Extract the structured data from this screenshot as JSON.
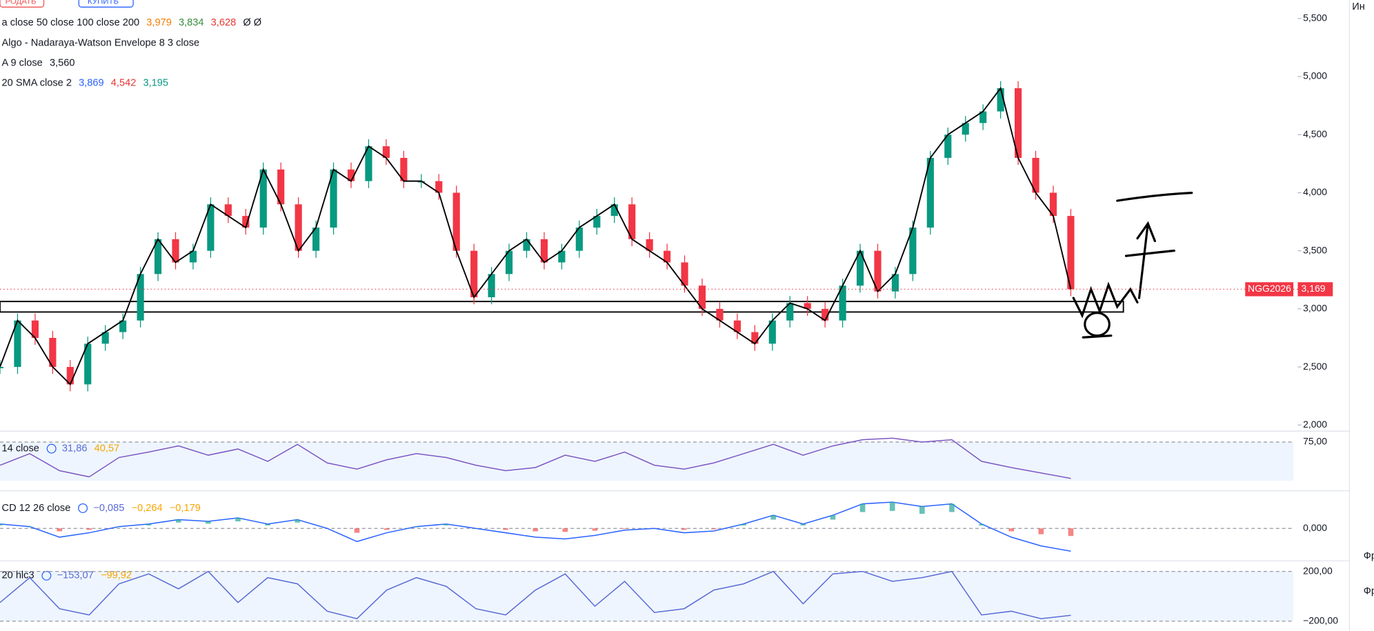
{
  "buttons": {
    "sell": "РОДАТЬ",
    "buy": "КУПИТЬ"
  },
  "legend": [
    {
      "name": "a close 50 close 100 close 200",
      "values": [
        "3,979",
        "3,834",
        "3,628",
        "Ø Ø"
      ],
      "colors": [
        "#f57c00",
        "#388e3c",
        "#e53935",
        "#131722"
      ]
    },
    {
      "name": "Algo - Nadaraya-Watson Envelope 8 3 close",
      "values": [],
      "colors": []
    },
    {
      "name": "A 9 close",
      "values": [
        "3,560"
      ],
      "colors": [
        "#131722"
      ]
    },
    {
      "name": "20 SMA close 2",
      "values": [
        "3,869",
        "4,542",
        "3,195"
      ],
      "colors": [
        "#2962ff",
        "#e53935",
        "#089981"
      ]
    }
  ],
  "main": {
    "ylim": [
      2000,
      5500
    ],
    "yticks": [
      {
        "value": 2000,
        "label": "2,000"
      },
      {
        "value": 2500,
        "label": "2,500"
      },
      {
        "value": 3000,
        "label": "3,000"
      },
      {
        "value": 3500,
        "label": "3,500"
      },
      {
        "value": 4000,
        "label": "4,000"
      },
      {
        "value": 4500,
        "label": "4,500"
      },
      {
        "value": 5000,
        "label": "5,000"
      },
      {
        "value": 5500,
        "label": "5,500"
      }
    ],
    "close": [
      2500,
      2900,
      2750,
      2500,
      2350,
      2700,
      2800,
      2900,
      3300,
      3600,
      3400,
      3500,
      3900,
      3800,
      3700,
      4200,
      3900,
      3500,
      3700,
      4200,
      4100,
      4400,
      4300,
      4100,
      4100,
      4000,
      3500,
      3100,
      3300,
      3500,
      3600,
      3400,
      3500,
      3700,
      3800,
      3900,
      3600,
      3500,
      3400,
      3200,
      3000,
      2900,
      2800,
      2700,
      2900,
      3050,
      3000,
      2900,
      3200,
      3500,
      3150,
      3300,
      3700,
      4300,
      4500,
      4600,
      4700,
      4900,
      4300,
      4000,
      3800,
      3169
    ],
    "symbol": "NGG2026",
    "last": {
      "value": 3169,
      "label": "3,169"
    }
  },
  "rsi": {
    "title": "14 close",
    "readings": [
      "31,86",
      "40,57"
    ],
    "ylim": [
      20,
      80
    ],
    "yticks": [
      {
        "value": 75,
        "label": "75,00"
      }
    ],
    "values": [
      45,
      60,
      38,
      30,
      55,
      62,
      70,
      58,
      66,
      50,
      72,
      48,
      40,
      52,
      60,
      55,
      45,
      38,
      42,
      58,
      50,
      62,
      45,
      40,
      48,
      60,
      72,
      58,
      70,
      78,
      80,
      75,
      78,
      50,
      42,
      35,
      28
    ]
  },
  "macd": {
    "title": "CD 12 26 close",
    "readings": [
      "−0,085",
      "−0,264",
      "−0,179"
    ],
    "ylim": [
      -0.35,
      0.35
    ],
    "yticks": [
      {
        "value": 0,
        "label": "0,000"
      }
    ],
    "values": [
      0.05,
      0.02,
      -0.1,
      -0.05,
      0.02,
      0.05,
      0.1,
      0.08,
      0.12,
      0.05,
      0.1,
      0.0,
      -0.15,
      -0.05,
      0.02,
      0.05,
      0.0,
      -0.05,
      -0.1,
      -0.12,
      -0.08,
      -0.02,
      0.0,
      -0.05,
      -0.03,
      0.05,
      0.15,
      0.05,
      0.15,
      0.28,
      0.3,
      0.25,
      0.28,
      0.05,
      -0.1,
      -0.2,
      -0.26
    ]
  },
  "cci": {
    "title": "20 hlc3",
    "readings": [
      "−153,07",
      "−99,92"
    ],
    "ylim": [
      -250,
      250
    ],
    "yticks": [
      {
        "value": 200,
        "label": "200,00"
      },
      {
        "value": -200,
        "label": "−200,00"
      }
    ],
    "values": [
      -50,
      150,
      -100,
      -150,
      100,
      180,
      60,
      200,
      -50,
      150,
      100,
      -120,
      -180,
      50,
      150,
      80,
      -100,
      -150,
      50,
      180,
      -80,
      120,
      -130,
      -100,
      50,
      100,
      200,
      -60,
      180,
      200,
      120,
      150,
      200,
      -150,
      -120,
      -180,
      -153
    ]
  },
  "sidebar": {
    "top": "Ин",
    "labels": [
      "Фр",
      "Фр"
    ]
  }
}
